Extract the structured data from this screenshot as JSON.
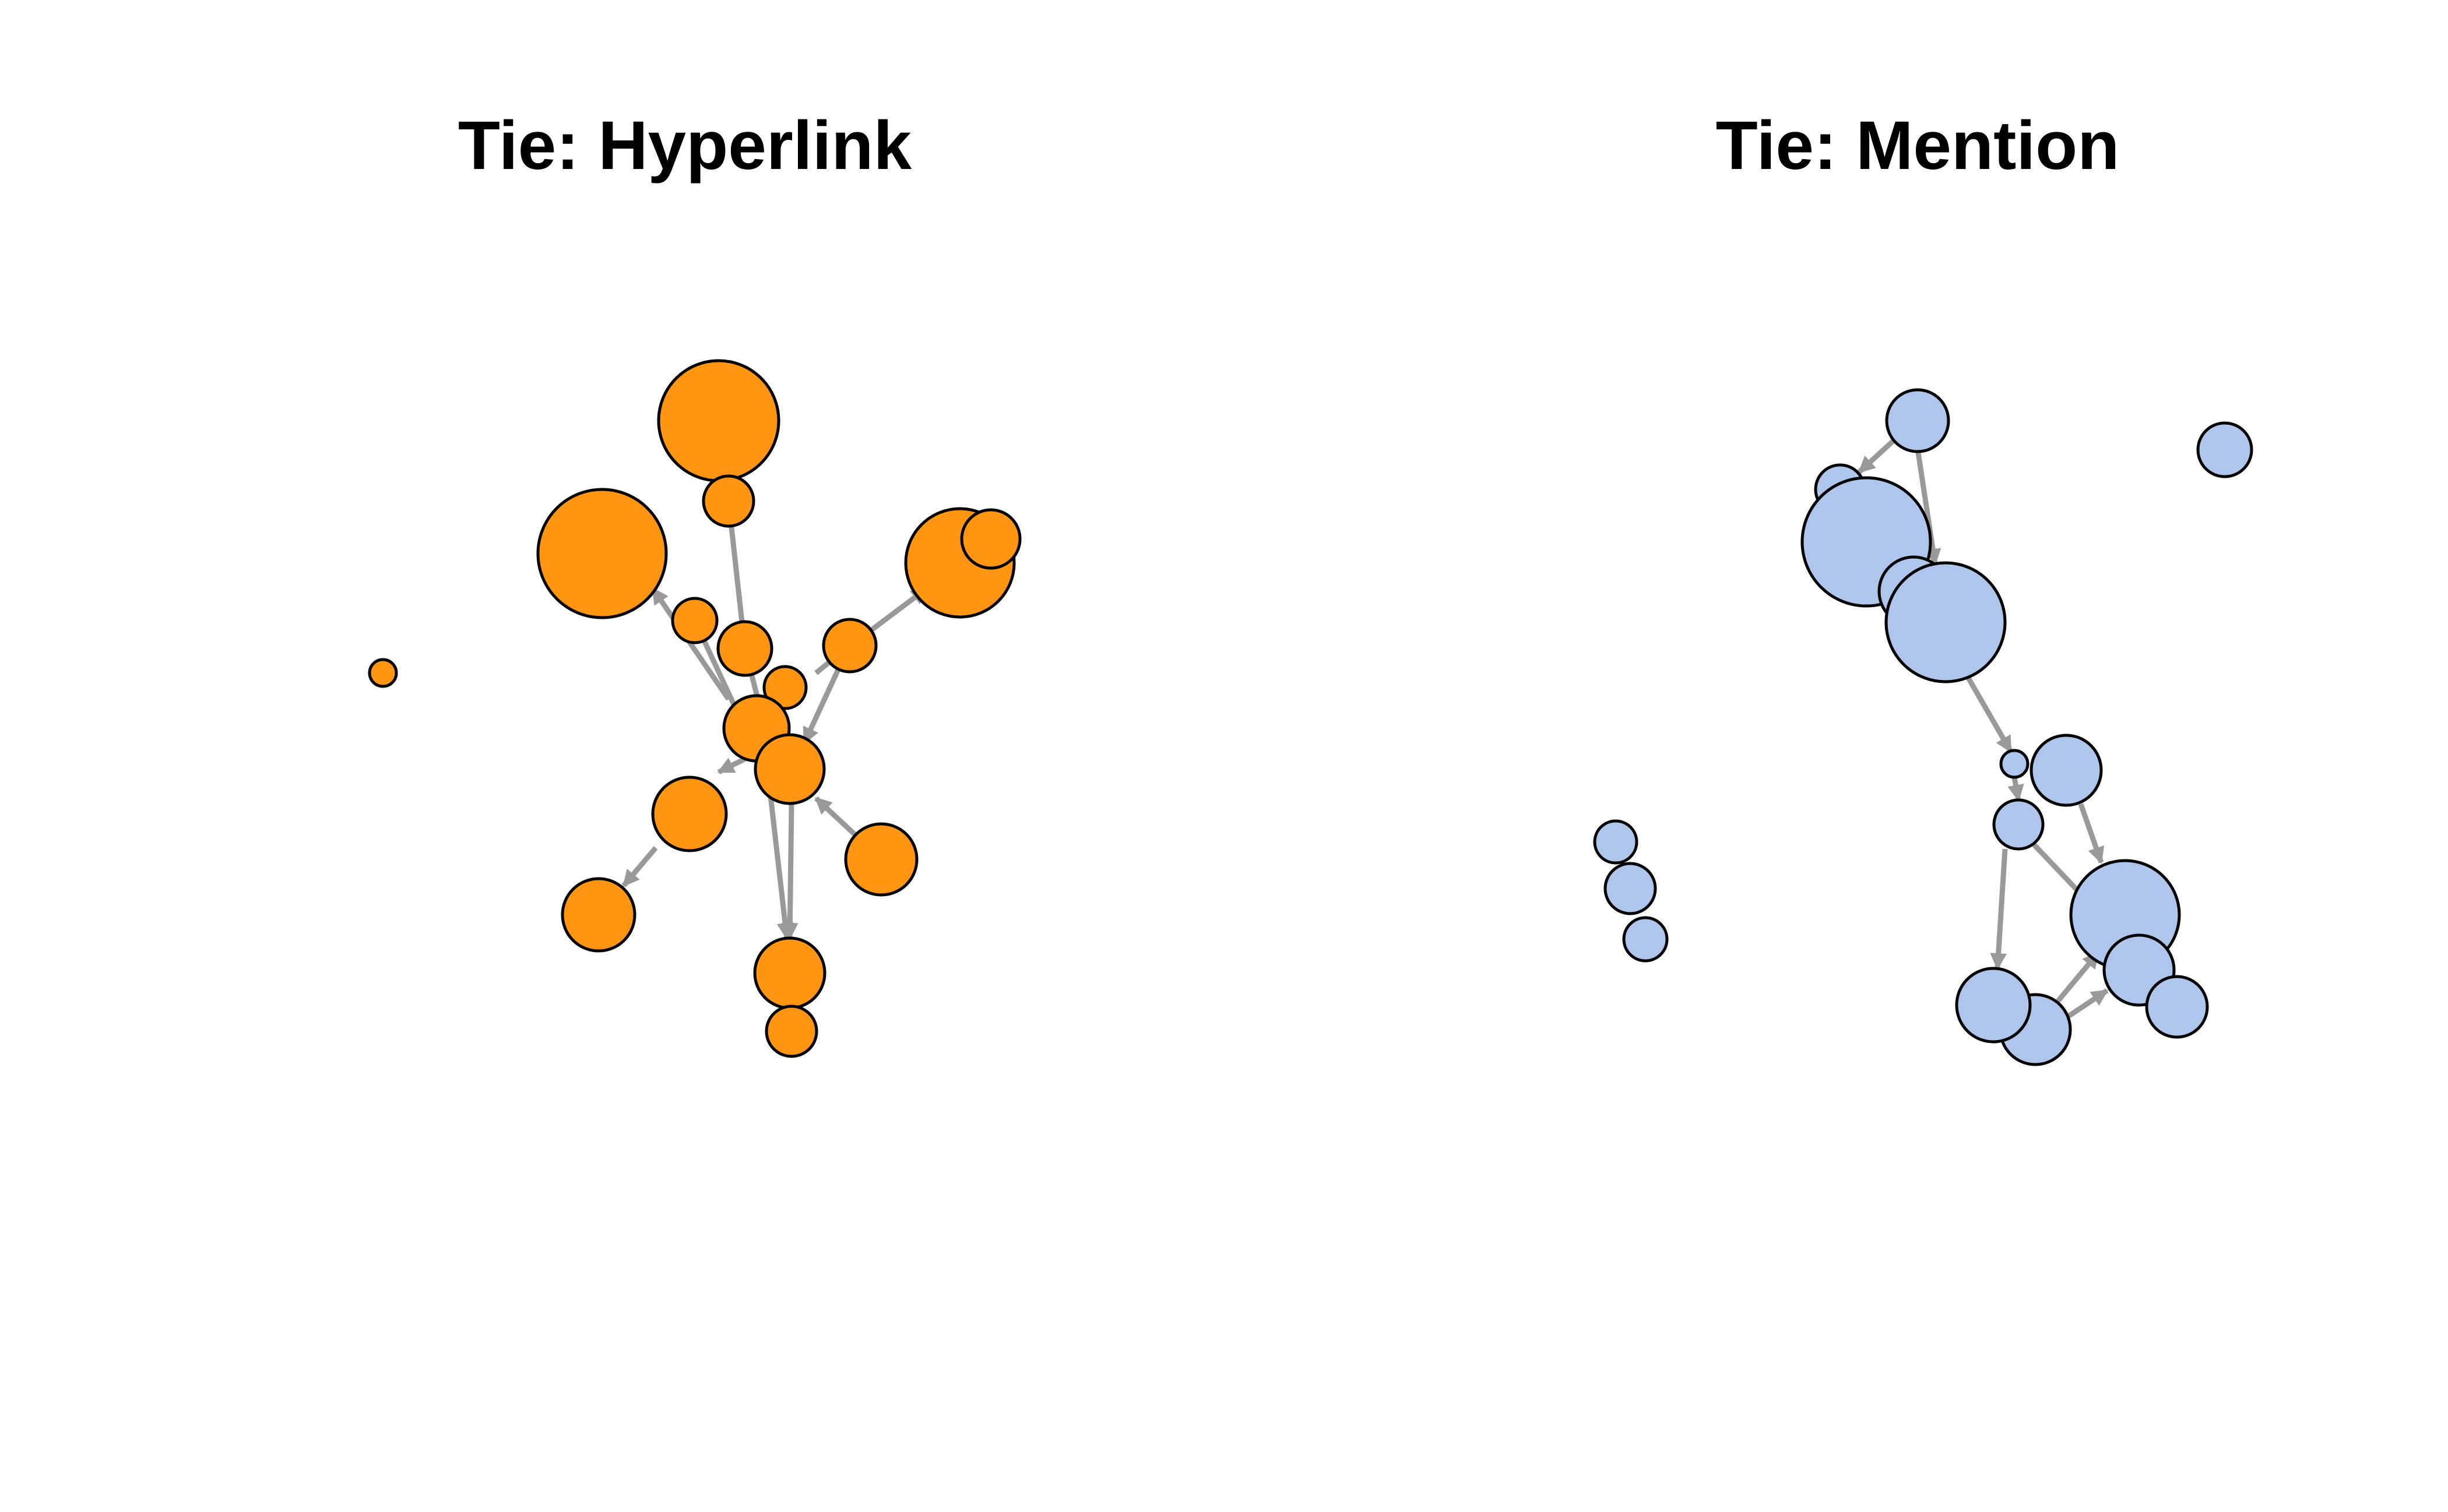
{
  "colors": {
    "hyperlink_node": "#ff9511",
    "mention_node": "#aec6ec",
    "edge": "#999999",
    "outline": "#000000",
    "background": "#ffffff"
  },
  "panels": [
    {
      "title": "Tie: Hyperlink",
      "nodes": 18,
      "edges": 15,
      "isolates": 1
    },
    {
      "title": "Tie: Mention",
      "nodes": 18,
      "edges": 15,
      "isolates": 4
    }
  ]
}
